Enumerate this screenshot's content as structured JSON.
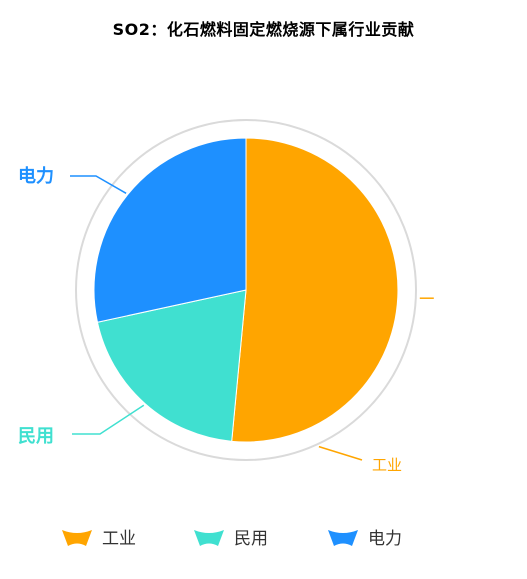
{
  "chart_data": {
    "type": "pie",
    "title": "SO2：化石燃料固定燃烧源下属行业贡献",
    "categories": [
      "工业",
      "民用",
      "电力"
    ],
    "values": [
      51.5,
      20.1,
      28.4
    ],
    "colors": [
      "#FFA500",
      "#40E0D0",
      "#1E90FF"
    ],
    "legend_position": "bottom",
    "legend": [
      "工业",
      "民用",
      "电力"
    ]
  }
}
